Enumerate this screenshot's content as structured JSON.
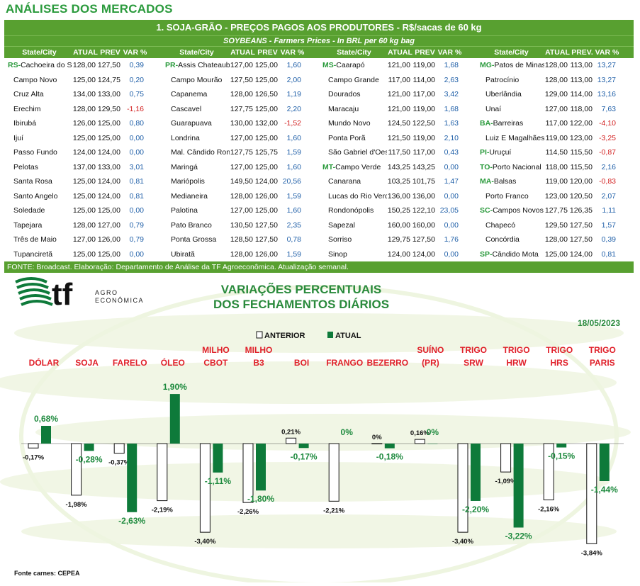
{
  "header": {
    "title": "ANÁLISES DOS MERCADOS"
  },
  "table": {
    "title": "1. SOJA-GRÃO - PREÇOS PAGOS AOS PRODUTORES - R$/sacas de 60 kg",
    "subtitle": "SOYBEANS - Farmers Prices - In BRL per 60 kg bag",
    "col_headers": [
      [
        "State/City",
        "ATUAL",
        "PREV",
        "VAR %"
      ],
      [
        "State/City",
        "ATUAL",
        "PREV",
        "VAR %"
      ],
      [
        "State/City",
        "ATUAL",
        "PREV",
        "VAR %"
      ],
      [
        "State/City",
        "ATUAL",
        "PREV.",
        "VAR %"
      ]
    ],
    "columns": [
      [
        {
          "st": "RS-",
          "city": "Cachoeira do Sul",
          "atual": "128,00",
          "prev": "127,50",
          "var": "0,39"
        },
        {
          "st": "",
          "city": "Campo Novo",
          "atual": "125,00",
          "prev": "124,75",
          "var": "0,20"
        },
        {
          "st": "",
          "city": "Cruz Alta",
          "atual": "134,00",
          "prev": "133,00",
          "var": "0,75"
        },
        {
          "st": "",
          "city": "Erechim",
          "atual": "128,00",
          "prev": "129,50",
          "var": "-1,16"
        },
        {
          "st": "",
          "city": "Ibirubá",
          "atual": "126,00",
          "prev": "125,00",
          "var": "0,80"
        },
        {
          "st": "",
          "city": "Ijuí",
          "atual": "125,00",
          "prev": "125,00",
          "var": "0,00"
        },
        {
          "st": "",
          "city": "Passo Fundo",
          "atual": "124,00",
          "prev": "124,00",
          "var": "0,00"
        },
        {
          "st": "",
          "city": "Pelotas",
          "atual": "137,00",
          "prev": "133,00",
          "var": "3,01"
        },
        {
          "st": "",
          "city": "Santa Rosa",
          "atual": "125,00",
          "prev": "124,00",
          "var": "0,81"
        },
        {
          "st": "",
          "city": "Santo Angelo",
          "atual": "125,00",
          "prev": "124,00",
          "var": "0,81"
        },
        {
          "st": "",
          "city": "Soledade",
          "atual": "125,00",
          "prev": "125,00",
          "var": "0,00"
        },
        {
          "st": "",
          "city": "Tapejara",
          "atual": "128,00",
          "prev": "127,00",
          "var": "0,79"
        },
        {
          "st": "",
          "city": "Três de Maio",
          "atual": "127,00",
          "prev": "126,00",
          "var": "0,79"
        },
        {
          "st": "",
          "city": "Tupanciretã",
          "atual": "125,00",
          "prev": "125,00",
          "var": "0,00"
        }
      ],
      [
        {
          "st": "PR-",
          "city": "Assis Chateaubriand",
          "atual": "127,00",
          "prev": "125,00",
          "var": "1,60"
        },
        {
          "st": "",
          "city": "Campo Mourão",
          "atual": "127,50",
          "prev": "125,00",
          "var": "2,00"
        },
        {
          "st": "",
          "city": "Capanema",
          "atual": "128,00",
          "prev": "126,50",
          "var": "1,19"
        },
        {
          "st": "",
          "city": "Cascavel",
          "atual": "127,75",
          "prev": "125,00",
          "var": "2,20"
        },
        {
          "st": "",
          "city": "Guarapuava",
          "atual": "130,00",
          "prev": "132,00",
          "var": "-1,52"
        },
        {
          "st": "",
          "city": "Londrina",
          "atual": "127,00",
          "prev": "125,00",
          "var": "1,60"
        },
        {
          "st": "",
          "city": "Mal. Cândido Rondon",
          "atual": "127,75",
          "prev": "125,75",
          "var": "1,59"
        },
        {
          "st": "",
          "city": "Maringá",
          "atual": "127,00",
          "prev": "125,00",
          "var": "1,60"
        },
        {
          "st": "",
          "city": "Mariópolis",
          "atual": "149,50",
          "prev": "124,00",
          "var": "20,56"
        },
        {
          "st": "",
          "city": "Medianeira",
          "atual": "128,00",
          "prev": "126,00",
          "var": "1,59"
        },
        {
          "st": "",
          "city": "Palotina",
          "atual": "127,00",
          "prev": "125,00",
          "var": "1,60"
        },
        {
          "st": "",
          "city": "Pato Branco",
          "atual": "130,50",
          "prev": "127,50",
          "var": "2,35"
        },
        {
          "st": "",
          "city": "Ponta Grossa",
          "atual": "128,50",
          "prev": "127,50",
          "var": "0,78"
        },
        {
          "st": "",
          "city": "Ubiratã",
          "atual": "128,00",
          "prev": "126,00",
          "var": "1,59"
        }
      ],
      [
        {
          "st": "MS-",
          "city": "Caarapó",
          "atual": "121,00",
          "prev": "119,00",
          "var": "1,68"
        },
        {
          "st": "",
          "city": "Campo Grande",
          "atual": "117,00",
          "prev": "114,00",
          "var": "2,63"
        },
        {
          "st": "",
          "city": "Dourados",
          "atual": "121,00",
          "prev": "117,00",
          "var": "3,42"
        },
        {
          "st": "",
          "city": "Maracaju",
          "atual": "121,00",
          "prev": "119,00",
          "var": "1,68"
        },
        {
          "st": "",
          "city": "Mundo Novo",
          "atual": "124,50",
          "prev": "122,50",
          "var": "1,63"
        },
        {
          "st": "",
          "city": "Ponta Porã",
          "atual": "121,50",
          "prev": "119,00",
          "var": "2,10"
        },
        {
          "st": "",
          "city": "São Gabriel d'Oeste",
          "atual": "117,50",
          "prev": "117,00",
          "var": "0,43"
        },
        {
          "st": "MT-",
          "city": "Campo Verde",
          "atual": "143,25",
          "prev": "143,25",
          "var": "0,00"
        },
        {
          "st": "",
          "city": "Canarana",
          "atual": "103,25",
          "prev": "101,75",
          "var": "1,47"
        },
        {
          "st": "",
          "city": "Lucas do Rio Verde",
          "atual": "136,00",
          "prev": "136,00",
          "var": "0,00"
        },
        {
          "st": "",
          "city": "Rondonópolis",
          "atual": "150,25",
          "prev": "122,10",
          "var": "23,05"
        },
        {
          "st": "",
          "city": "Sapezal",
          "atual": "160,00",
          "prev": "160,00",
          "var": "0,00"
        },
        {
          "st": "",
          "city": "Sorriso",
          "atual": "129,75",
          "prev": "127,50",
          "var": "1,76"
        },
        {
          "st": "",
          "city": "Sinop",
          "atual": "124,00",
          "prev": "124,00",
          "var": "0,00"
        }
      ],
      [
        {
          "st": "MG-",
          "city": "Patos de Minas",
          "atual": "128,00",
          "prev": "113,00",
          "var": "13,27"
        },
        {
          "st": "",
          "city": "Patrocínio",
          "atual": "128,00",
          "prev": "113,00",
          "var": "13,27"
        },
        {
          "st": "",
          "city": "Uberlândia",
          "atual": "129,00",
          "prev": "114,00",
          "var": "13,16"
        },
        {
          "st": "",
          "city": "Unaí",
          "atual": "127,00",
          "prev": "118,00",
          "var": "7,63"
        },
        {
          "st": "BA-",
          "city": "Barreiras",
          "atual": "117,00",
          "prev": "122,00",
          "var": "-4,10"
        },
        {
          "st": "",
          "city": "Luiz E Magalhães",
          "atual": "119,00",
          "prev": "123,00",
          "var": "-3,25"
        },
        {
          "st": "PI-",
          "city": "Uruçuí",
          "atual": "114,50",
          "prev": "115,50",
          "var": "-0,87"
        },
        {
          "st": "TO-",
          "city": "Porto Nacional",
          "atual": "118,00",
          "prev": "115,50",
          "var": "2,16"
        },
        {
          "st": "MA-",
          "city": "Balsas",
          "atual": "119,00",
          "prev": "120,00",
          "var": "-0,83"
        },
        {
          "st": "",
          "city": "Porto Franco",
          "atual": "123,00",
          "prev": "120,50",
          "var": "2,07"
        },
        {
          "st": "SC-",
          "city": "Campos Novos",
          "atual": "127,75",
          "prev": "126,35",
          "var": "1,11"
        },
        {
          "st": "",
          "city": "Chapecó",
          "atual": "129,50",
          "prev": "127,50",
          "var": "1,57"
        },
        {
          "st": "",
          "city": "Concórdia",
          "atual": "128,00",
          "prev": "127,50",
          "var": "0,39"
        },
        {
          "st": "SP-",
          "city": "Cândido Mota",
          "atual": "125,00",
          "prev": "124,00",
          "var": "0,81"
        }
      ]
    ],
    "source": "FONTE: Broadcast. Elaboração: Departamento de Análise da TF Agroeconômica. Atualização semanal."
  },
  "logo": {
    "mark": "tf",
    "line1": "AGRO",
    "line2": "ECONÔMICA"
  },
  "colors": {
    "green_dark": "#0e7a3a",
    "green_header": "#58a030",
    "red_label": "#e0202a",
    "title_green": "#2a9a3c"
  },
  "chart_data": {
    "type": "bar",
    "title": "VARIAÇÕES PERCENTUAIS",
    "subtitle": "DOS FECHAMENTOS DIÁRIOS",
    "date": "18/05/2023",
    "legend": {
      "anterior": "ANTERIOR",
      "atual": "ATUAL",
      "placement": "top-center"
    },
    "categories": [
      [
        "DÓLAR"
      ],
      [
        "SOJA"
      ],
      [
        "FARELO"
      ],
      [
        "ÓLEO"
      ],
      [
        "MILHO",
        "CBOT"
      ],
      [
        "MILHO",
        "B3"
      ],
      [
        "BOI"
      ],
      [
        "FRANGO"
      ],
      [
        "BEZERRO"
      ],
      [
        "SUÍNO",
        "(PR)"
      ],
      [
        "TRIGO",
        "SRW"
      ],
      [
        "TRIGO",
        "HRW"
      ],
      [
        "TRIGO",
        "HRS"
      ],
      [
        "TRIGO",
        "PARIS"
      ]
    ],
    "series": [
      {
        "name": "ANTERIOR",
        "values": [
          -0.17,
          -1.98,
          -0.37,
          -2.19,
          -3.4,
          -2.26,
          0.21,
          -2.21,
          0,
          0.16,
          -3.4,
          -1.09,
          -2.16,
          -3.84
        ],
        "labels": [
          "-0,17%",
          "-1,98%",
          "-0,37%",
          "-2,19%",
          "-3,40%",
          "-2,26%",
          "0,21%",
          "-2,21%",
          "0%",
          "0,16%",
          "-3,40%",
          "-1,09%",
          "-2,16%",
          "-3,84%"
        ]
      },
      {
        "name": "ATUAL",
        "values": [
          0.68,
          -0.28,
          -2.63,
          1.9,
          -1.11,
          -1.8,
          -0.17,
          null,
          -0.18,
          0,
          -2.2,
          -3.22,
          -0.15,
          -1.44
        ],
        "labels": [
          "0,68%",
          "-0,28%",
          "-2,63%",
          "1,90%",
          "-1,11%",
          "-1,80%",
          "-0,17%",
          "0%",
          "-0,18%",
          "0%",
          "-2,20%",
          "-3,22%",
          "-0,15%",
          "-1,44%"
        ]
      }
    ],
    "ylim": [
      -4.2,
      2.2
    ],
    "footnote": "Fonte carnes: CEPEA"
  }
}
